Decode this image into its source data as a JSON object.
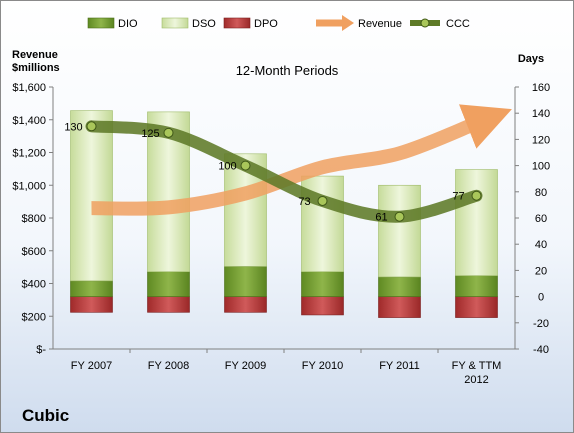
{
  "chart_data": {
    "type": "bar",
    "title": "12-Month Periods",
    "subtitle": "",
    "categories": [
      "FY 2007",
      "FY 2008",
      "FY 2009",
      "FY 2010",
      "FY 2011",
      "FY & TTM 2012"
    ],
    "y_left_label": "Revenue $millions",
    "y_right_label": "Days",
    "y_left_ticks": [
      "$-",
      "$200",
      "$400",
      "$600",
      "$800",
      "$1,000",
      "$1,200",
      "$1,400",
      "$1,600"
    ],
    "y_right_ticks": [
      "-40",
      "-20",
      "0",
      "20",
      "40",
      "60",
      "80",
      "100",
      "120",
      "140",
      "160"
    ],
    "ylim_left": [
      0,
      1600
    ],
    "ylim_right": [
      -40,
      160
    ],
    "series": [
      {
        "name": "DIO",
        "type": "bar",
        "axis": "right",
        "values": [
          12,
          19,
          23,
          19,
          15,
          16
        ],
        "color": "#6e9a2c"
      },
      {
        "name": "DSO",
        "type": "bar",
        "axis": "right",
        "values": [
          130,
          122,
          86,
          73,
          70,
          81
        ],
        "color": "#dcebc0"
      },
      {
        "name": "DPO",
        "type": "bar",
        "axis": "right",
        "values": [
          12,
          12,
          12,
          14,
          16,
          16
        ],
        "color": "#b53a3a"
      },
      {
        "name": "Revenue",
        "type": "line",
        "axis": "left",
        "values": [
          860,
          865,
          950,
          1110,
          1195,
          1380
        ],
        "color": "#f0a060"
      },
      {
        "name": "CCC",
        "type": "line",
        "axis": "right",
        "values": [
          130,
          125,
          100,
          73,
          61,
          77
        ],
        "color": "#5e7a28"
      }
    ],
    "data_labels": [
      "130",
      "125",
      "100",
      "73",
      "61",
      "77"
    ],
    "legend": {
      "position": "top",
      "items": [
        "DIO",
        "DSO",
        "DPO",
        "Revenue",
        "CCC"
      ]
    },
    "company": "Cubic"
  }
}
